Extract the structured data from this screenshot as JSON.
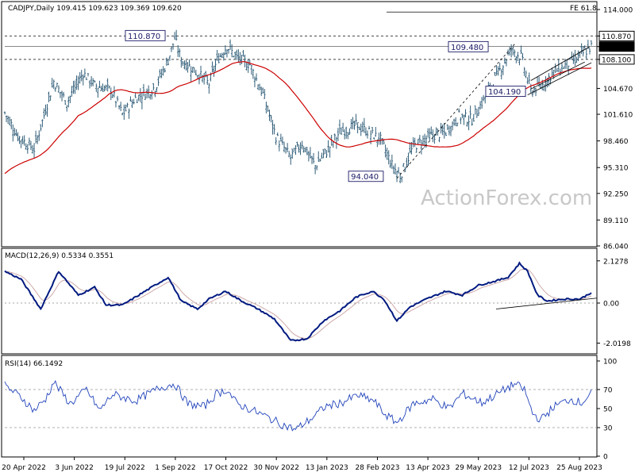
{
  "chart_data": {
    "type": "candlestick",
    "header": "CADJPY,Daily  109.415 109.623 109.369 109.620",
    "watermark": "ActionForex.com",
    "price_axis": {
      "ticks": [
        "114.000",
        "110.870",
        "109.620",
        "108.100",
        "104.670",
        "101.610",
        "98.460",
        "95.310",
        "92.250",
        "89.110",
        "86.040"
      ],
      "tick_values": [
        114.0,
        110.87,
        109.62,
        108.1,
        104.67,
        101.61,
        98.46,
        95.31,
        92.25,
        89.11,
        86.04
      ],
      "highlighted": [
        "110.870",
        "109.620",
        "108.100"
      ],
      "ylim": [
        86.04,
        114.0
      ]
    },
    "x_axis": {
      "dates": [
        "20 Apr 2022",
        "3 Jun 2022",
        "19 Jul 2022",
        "1 Sep 2022",
        "17 Oct 2022",
        "30 Nov 2022",
        "13 Jan 2023",
        "28 Feb 2023",
        "13 Apr 2023",
        "29 May 2023",
        "12 Jul 2023",
        "25 Aug 2023"
      ]
    },
    "annotations": [
      {
        "text": "110.870",
        "x": "1 Sep 2022",
        "y": 110.87
      },
      {
        "text": "109.480",
        "x": "29 May 2023",
        "y": 109.48
      },
      {
        "text": "104.190",
        "x": "12 Jul 2023",
        "y": 104.19
      },
      {
        "text": "94.040",
        "x": "28 Feb 2023",
        "y": 94.04
      },
      {
        "text": "FE 61.8",
        "y": 113.7
      }
    ],
    "reference_lines": [
      {
        "y": 110.87,
        "style": "dashed"
      },
      {
        "y": 108.1,
        "style": "dashed"
      },
      {
        "y": 109.62,
        "style": "solid"
      },
      {
        "y": 113.7,
        "style": "solid",
        "label": "FE 61.8"
      }
    ],
    "price_series": {
      "name": "CADJPY",
      "dates": [
        "20 Apr 2022",
        "3 Jun 2022",
        "19 Jul 2022",
        "1 Sep 2022",
        "17 Oct 2022",
        "30 Nov 2022",
        "13 Jan 2023",
        "28 Feb 2023",
        "13 Apr 2023",
        "29 May 2023",
        "12 Jul 2023",
        "25 Aug 2023"
      ],
      "close_approx": [
        101.6,
        105.5,
        102.0,
        110.2,
        107.0,
        96.5,
        99.8,
        95.2,
        99.5,
        109.4,
        105.8,
        108.5
      ],
      "last_close": 109.62
    },
    "moving_average": {
      "color": "#cc0000",
      "values_approx": [
        95.0,
        100.5,
        103.3,
        105.6,
        106.7,
        102.0,
        98.8,
        98.6,
        98.3,
        100.5,
        106.2,
        107.9
      ]
    },
    "macd": {
      "label": "MACD(12,26,9) 0.5334 0.3551",
      "ticks": [
        "2.1278",
        "0.00",
        "-2.0198"
      ],
      "tick_values": [
        2.1278,
        0.0,
        -2.0198
      ],
      "zero_line": 0.0,
      "values_approx": [
        1.8,
        -0.1,
        1.6,
        -0.3,
        1.5,
        -0.2,
        -1.9,
        -0.6,
        0.5,
        -0.9,
        1.8,
        2.1,
        0.2,
        0.3,
        0.6
      ]
    },
    "rsi": {
      "label": "RSI(14) 66.1492",
      "ticks": [
        "100",
        "70",
        "50",
        "30",
        "0"
      ],
      "tick_values": [
        100,
        70,
        50,
        30,
        0
      ],
      "levels": [
        70,
        30
      ],
      "values_approx": [
        75,
        55,
        70,
        55,
        75,
        35,
        25,
        60,
        45,
        60,
        75,
        45,
        60,
        66
      ]
    },
    "colors": {
      "bars": "#1b4d6b",
      "ma": "#cc0000",
      "macd": "#001a80",
      "signal": "#c8a0a0",
      "rsi": "#2244bb",
      "grid": "#9a9a9a"
    }
  }
}
